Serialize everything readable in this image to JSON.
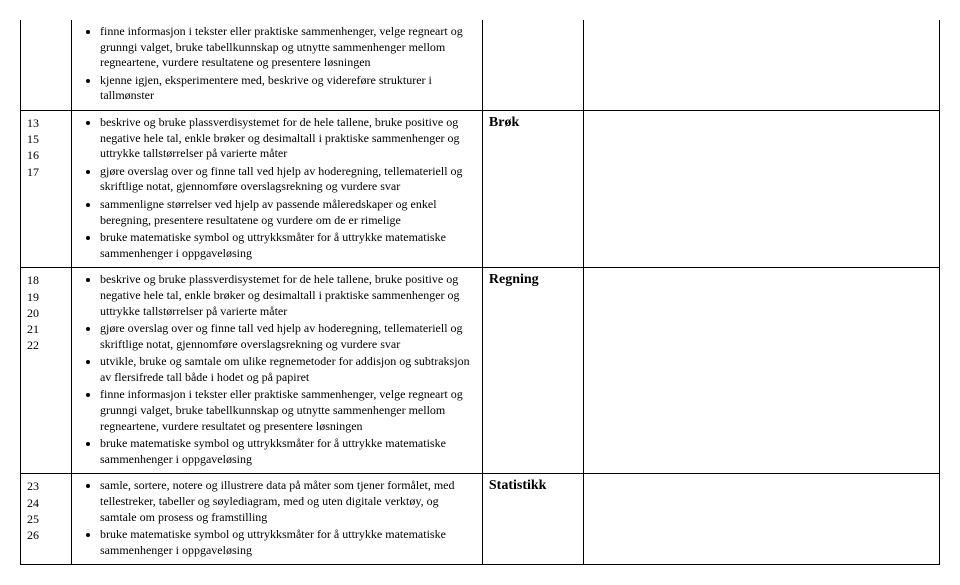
{
  "rows": [
    {
      "weeks": "",
      "topic": "",
      "goals": [
        "finne informasjon i tekster eller praktiske sammenhenger, velge regneart og grunngi valget, bruke tabellkunnskap og utnytte sammenhenger mellom regneartene, vurdere resultatene og presentere løsningen",
        "kjenne igjen, eksperimentere med, beskrive og videreføre strukturer i tallmønster"
      ]
    },
    {
      "weeks": "13\n15\n16\n17",
      "topic": "Brøk",
      "goals": [
        "beskrive og bruke plassverdisystemet for de hele tallene, bruke positive og negative hele tal, enkle brøker og desimaltall i praktiske sammenhenger og uttrykke tallstørrelser på varierte måter",
        "gjøre overslag over og finne tall ved hjelp av hoderegning, tellemateriell og skriftlige notat, gjennomføre overslagsrekning og vurdere svar",
        "sammenligne størrelser ved hjelp av passende måleredskaper og enkel beregning, presentere resultatene og vurdere om de er rimelige",
        "bruke matematiske symbol og uttrykksmåter for å uttrykke matematiske sammenhenger i oppgaveløsing"
      ]
    },
    {
      "weeks": "18\n19\n20\n21\n22",
      "topic": "Regning",
      "goals": [
        "beskrive og bruke plassverdisystemet for de hele tallene, bruke positive og negative hele tal, enkle brøker og desimaltall i praktiske sammenhenger og uttrykke tallstørrelser på varierte måter",
        "gjøre overslag over og finne tall ved hjelp av hoderegning, tellemateriell og skriftlige notat, gjennomføre overslagsrekning og vurdere svar",
        "utvikle, bruke og samtale om ulike regnemetoder for addisjon og subtraksjon av flersifrede tall både i hodet og på papiret",
        "finne informasjon i tekster eller praktiske sammenhenger, velge regneart og grunngi valget, bruke tabellkunnskap og utnytte sammenhenger mellom regneartene, vurdere resultatet og presentere løsningen",
        "bruke matematiske symbol og uttrykksmåter for å uttrykke matematiske sammenhenger i oppgaveløsing"
      ]
    },
    {
      "weeks": "23\n24\n25\n26",
      "topic": "Statistikk",
      "goals": [
        "samle, sortere, notere og illustrere data på måter som tjener formålet, med tellestreker, tabeller og søylediagram, med og uten digitale verktøy, og samtale om prosess og framstilling",
        "bruke matematiske symbol og uttrykksmåter for å uttrykke matematiske sammenhenger i oppgaveløsing"
      ]
    }
  ]
}
